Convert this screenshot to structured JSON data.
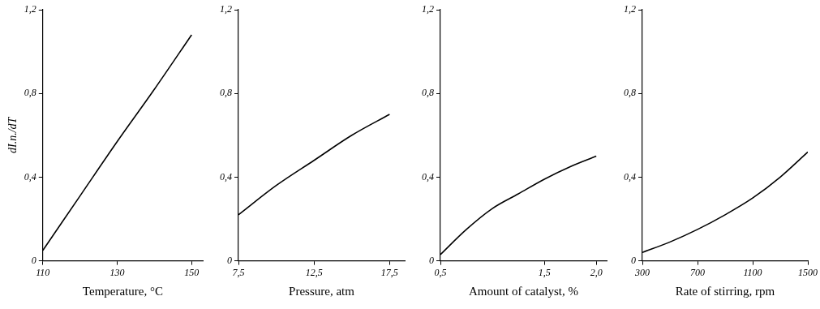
{
  "chart_data": [
    {
      "type": "line",
      "x_label": "Temperature, °C",
      "y_label": "dI.n./dT",
      "x": [
        110,
        120,
        130,
        140,
        150
      ],
      "values": [
        0.05,
        0.31,
        0.57,
        0.82,
        1.08
      ],
      "color": "#000000",
      "xlim": [
        110,
        153
      ],
      "xticks": [
        110,
        130,
        150
      ],
      "ylim": [
        0,
        1.2
      ],
      "yticks": [
        0,
        {
          "value": 0.4,
          "label": "0,4"
        },
        {
          "value": 0.8,
          "label": "0,8"
        },
        {
          "value": 1.2,
          "label": "1,2"
        }
      ],
      "grid": false
    },
    {
      "type": "line",
      "x_label": "Pressure, atm",
      "x": [
        7.5,
        10,
        12.5,
        15,
        17.5
      ],
      "values": [
        0.22,
        0.36,
        0.48,
        0.6,
        0.7
      ],
      "color": "#000000",
      "xlim": [
        7.5,
        18.5
      ],
      "xticks": [
        {
          "value": 7.5,
          "label": "7,5"
        },
        {
          "value": 12.5,
          "label": "12,5"
        },
        {
          "value": 17.5,
          "label": "17,5"
        }
      ],
      "ylim": [
        0,
        1.2
      ],
      "yticks": [
        0,
        {
          "value": 0.4,
          "label": "0,4"
        },
        {
          "value": 0.8,
          "label": "0,8"
        },
        {
          "value": 1.2,
          "label": "1,2"
        }
      ],
      "grid": false
    },
    {
      "type": "line",
      "x_label": "Amount of catalyst, %",
      "x": [
        0.5,
        0.75,
        1.0,
        1.25,
        1.5,
        1.75,
        2.0
      ],
      "values": [
        0.03,
        0.15,
        0.25,
        0.32,
        0.39,
        0.45,
        0.5
      ],
      "color": "#000000",
      "xlim": [
        0.5,
        2.1
      ],
      "xticks": [
        {
          "value": 0.5,
          "label": "0,5"
        },
        {
          "value": 1.5,
          "label": "1,5"
        },
        {
          "value": 2.0,
          "label": "2,0"
        }
      ],
      "ylim": [
        0,
        1.2
      ],
      "yticks": [
        0,
        {
          "value": 0.4,
          "label": "0,4"
        },
        {
          "value": 0.8,
          "label": "0,8"
        },
        {
          "value": 1.2,
          "label": "1,2"
        }
      ],
      "grid": false
    },
    {
      "type": "line",
      "x_label": "Rate of stirring, rpm",
      "x": [
        300,
        500,
        700,
        900,
        1100,
        1300,
        1500
      ],
      "values": [
        0.04,
        0.09,
        0.15,
        0.22,
        0.3,
        0.4,
        0.52
      ],
      "color": "#000000",
      "xlim": [
        300,
        1500
      ],
      "xticks": [
        300,
        700,
        1100,
        1500
      ],
      "ylim": [
        0,
        1.2
      ],
      "yticks": [
        0,
        {
          "value": 0.4,
          "label": "0,4"
        },
        {
          "value": 0.8,
          "label": "0,8"
        },
        {
          "value": 1.2,
          "label": "1,2"
        }
      ],
      "grid": false
    }
  ]
}
